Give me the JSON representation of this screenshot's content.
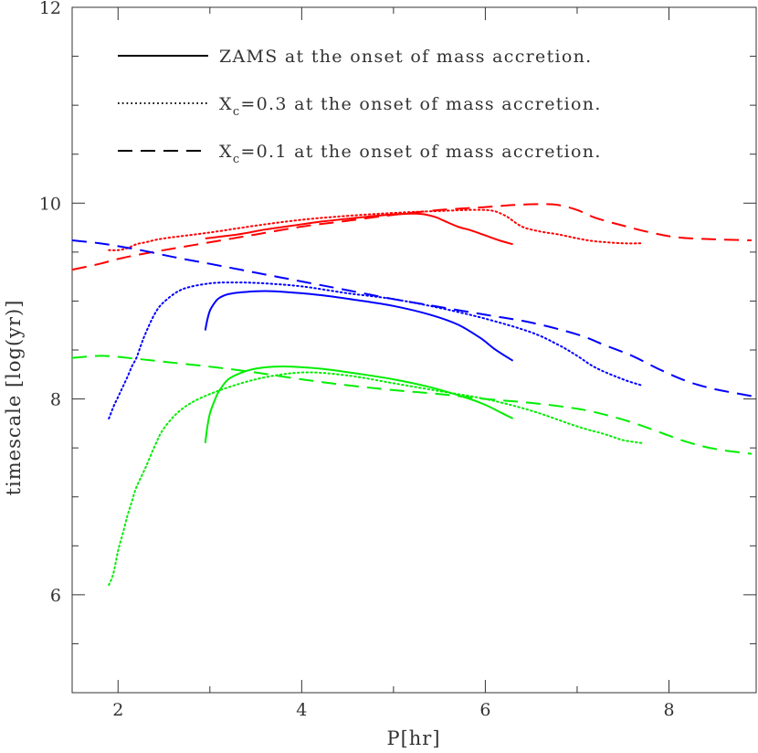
{
  "chart_data": {
    "type": "line",
    "title": "",
    "xlabel": "P[hr]",
    "ylabel": "timescale [log(yr)]",
    "xlim": [
      1.5,
      8.95
    ],
    "ylim": [
      5,
      12
    ],
    "x_ticks": [
      2,
      4,
      6,
      8
    ],
    "x_tick_labels": [
      "2",
      "4",
      "6",
      "8"
    ],
    "y_ticks": [
      6,
      8,
      10,
      12
    ],
    "y_tick_labels": [
      "6",
      "8",
      "10",
      "12"
    ],
    "grid": false,
    "legend_placement": "top-left",
    "legend": [
      {
        "style": "solid",
        "text": "ZAMS at the onset of mass accretion.",
        "sub": "",
        "suffix": ""
      },
      {
        "style": "dotted",
        "text": "X",
        "sub": "c",
        "suffix": "=0.3 at the onset of mass accretion."
      },
      {
        "style": "dashed",
        "text": "X",
        "sub": "c",
        "suffix": "=0.1 at the onset of mass accretion."
      }
    ],
    "colors": {
      "red": "#ff0000",
      "blue": "#0000ff",
      "green": "#00ee00",
      "axis": "#333333"
    },
    "series": [
      {
        "color": "red",
        "style": "solid",
        "x": [
          2.95,
          3.3,
          3.6,
          3.9,
          4.2,
          4.5,
          4.8,
          5.1,
          5.3,
          5.45,
          5.55,
          5.7,
          5.85,
          6.0,
          6.15,
          6.3
        ],
        "y": [
          9.64,
          9.68,
          9.73,
          9.77,
          9.81,
          9.84,
          9.87,
          9.89,
          9.89,
          9.86,
          9.82,
          9.76,
          9.72,
          9.67,
          9.62,
          9.58
        ]
      },
      {
        "color": "red",
        "style": "dotted",
        "x": [
          1.9,
          2.0,
          2.1,
          2.2,
          2.3,
          2.5,
          3.0,
          3.5,
          4.0,
          4.5,
          5.0,
          5.5,
          6.0,
          6.2,
          6.4,
          6.6,
          6.8,
          7.0,
          7.2,
          7.5,
          7.7
        ],
        "y": [
          9.52,
          9.52,
          9.54,
          9.58,
          9.6,
          9.64,
          9.7,
          9.77,
          9.83,
          9.87,
          9.9,
          9.92,
          9.93,
          9.88,
          9.76,
          9.71,
          9.68,
          9.64,
          9.61,
          9.59,
          9.59
        ]
      },
      {
        "color": "red",
        "style": "dashed",
        "x": [
          1.5,
          1.8,
          2.0,
          2.2,
          2.5,
          3.0,
          3.5,
          4.0,
          4.5,
          5.0,
          5.5,
          6.0,
          6.3,
          6.6,
          6.8,
          7.0,
          7.2,
          7.5,
          7.8,
          8.1,
          8.5,
          8.9
        ],
        "y": [
          9.32,
          9.38,
          9.43,
          9.47,
          9.52,
          9.6,
          9.68,
          9.76,
          9.82,
          9.88,
          9.93,
          9.96,
          9.98,
          9.99,
          9.98,
          9.93,
          9.85,
          9.77,
          9.7,
          9.65,
          9.63,
          9.62
        ]
      },
      {
        "color": "blue",
        "style": "solid",
        "x": [
          2.95,
          2.97,
          3.0,
          3.05,
          3.1,
          3.2,
          3.35,
          3.5,
          3.7,
          4.0,
          4.3,
          4.6,
          5.0,
          5.4,
          5.7,
          5.95,
          6.1,
          6.3
        ],
        "y": [
          8.7,
          8.8,
          8.9,
          8.98,
          9.03,
          9.07,
          9.09,
          9.1,
          9.1,
          9.08,
          9.05,
          9.01,
          8.95,
          8.86,
          8.76,
          8.62,
          8.51,
          8.39
        ]
      },
      {
        "color": "blue",
        "style": "dotted",
        "x": [
          1.9,
          1.95,
          2.0,
          2.05,
          2.1,
          2.15,
          2.2,
          2.25,
          2.3,
          2.4,
          2.5,
          2.7,
          3.0,
          3.3,
          3.6,
          4.0,
          4.5,
          5.0,
          5.5,
          6.0,
          6.5,
          6.8,
          7.0,
          7.2,
          7.5,
          7.7
        ],
        "y": [
          7.8,
          7.92,
          8.02,
          8.12,
          8.22,
          8.33,
          8.42,
          8.55,
          8.67,
          8.87,
          8.99,
          9.12,
          9.18,
          9.19,
          9.18,
          9.15,
          9.08,
          9.02,
          8.93,
          8.82,
          8.68,
          8.55,
          8.44,
          8.32,
          8.2,
          8.14
        ]
      },
      {
        "color": "blue",
        "style": "dashed",
        "x": [
          1.5,
          1.8,
          2.0,
          2.3,
          2.6,
          3.0,
          3.5,
          4.0,
          4.5,
          5.0,
          5.5,
          6.0,
          6.5,
          7.0,
          7.3,
          7.6,
          7.9,
          8.2,
          8.5,
          8.9
        ],
        "y": [
          9.62,
          9.59,
          9.56,
          9.51,
          9.45,
          9.38,
          9.29,
          9.2,
          9.11,
          9.02,
          8.94,
          8.86,
          8.78,
          8.66,
          8.55,
          8.44,
          8.3,
          8.18,
          8.1,
          8.03
        ]
      },
      {
        "color": "green",
        "style": "solid",
        "x": [
          2.95,
          2.97,
          3.0,
          3.05,
          3.1,
          3.2,
          3.35,
          3.5,
          3.7,
          3.9,
          4.2,
          4.6,
          5.0,
          5.4,
          5.8,
          6.0,
          6.15,
          6.3
        ],
        "y": [
          7.55,
          7.7,
          7.85,
          7.98,
          8.08,
          8.2,
          8.27,
          8.31,
          8.33,
          8.33,
          8.31,
          8.26,
          8.2,
          8.12,
          8.01,
          7.94,
          7.87,
          7.8
        ]
      },
      {
        "color": "green",
        "style": "dotted",
        "x": [
          1.9,
          1.95,
          2.0,
          2.05,
          2.1,
          2.15,
          2.2,
          2.3,
          2.4,
          2.5,
          2.7,
          3.0,
          3.5,
          4.0,
          4.5,
          5.0,
          5.5,
          6.0,
          6.5,
          7.0,
          7.3,
          7.5,
          7.7
        ],
        "y": [
          6.1,
          6.22,
          6.45,
          6.62,
          6.8,
          6.95,
          7.1,
          7.3,
          7.52,
          7.7,
          7.9,
          8.05,
          8.2,
          8.27,
          8.24,
          8.16,
          8.08,
          8.0,
          7.88,
          7.72,
          7.64,
          7.58,
          7.55
        ]
      },
      {
        "color": "green",
        "style": "dashed",
        "x": [
          1.5,
          1.8,
          2.0,
          2.2,
          2.5,
          3.0,
          3.5,
          4.0,
          4.5,
          5.0,
          5.5,
          6.0,
          6.5,
          7.0,
          7.3,
          7.6,
          7.9,
          8.2,
          8.5,
          8.9
        ],
        "y": [
          8.42,
          8.44,
          8.43,
          8.41,
          8.38,
          8.33,
          8.27,
          8.2,
          8.14,
          8.09,
          8.05,
          8.0,
          7.96,
          7.9,
          7.84,
          7.76,
          7.66,
          7.56,
          7.49,
          7.44
        ]
      }
    ]
  }
}
